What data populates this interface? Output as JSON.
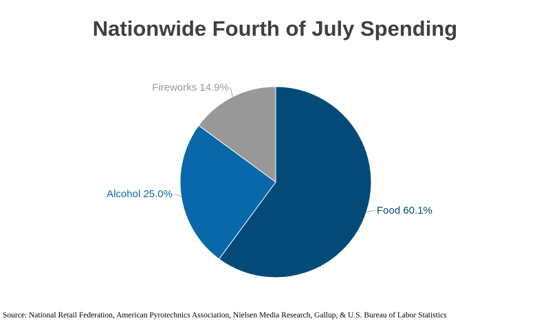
{
  "chart_data": {
    "type": "pie",
    "title": "Nationwide Fourth of July Spending",
    "slices": [
      {
        "label": "Food",
        "value": 60.1,
        "display": "Food 60.1%",
        "color": "#034a79"
      },
      {
        "label": "Alcohol",
        "value": 25.0,
        "display": "Alcohol 25.0%",
        "color": "#0868a9"
      },
      {
        "label": "Fireworks",
        "value": 14.9,
        "display": "Fireworks 14.9%",
        "color": "#989898"
      }
    ],
    "label_colors": {
      "Food": "#034a79",
      "Alcohol": "#0868a9",
      "Fireworks": "#9a9a9a"
    },
    "start": "12 o'clock",
    "direction": "clockwise",
    "legend": "none"
  },
  "source": "Source: National Retail Federation, American Pyrotechnics Association, Nielsen Media Research, Gallup, & U.S. Bureau of Labor Statistics"
}
